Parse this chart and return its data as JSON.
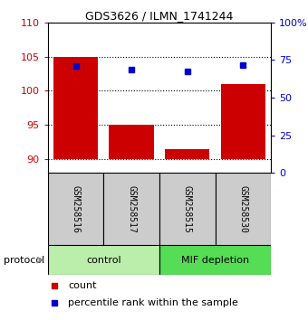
{
  "title": "GDS3626 / ILMN_1741244",
  "samples": [
    "GSM258516",
    "GSM258517",
    "GSM258515",
    "GSM258530"
  ],
  "bar_values": [
    105.0,
    95.0,
    91.5,
    101.0
  ],
  "bar_bottom": 90,
  "blue_values": [
    103.6,
    103.1,
    102.8,
    103.7
  ],
  "bar_color": "#cc0000",
  "blue_color": "#0000cc",
  "ylim_left": [
    88,
    110
  ],
  "ylim_right": [
    0,
    100
  ],
  "yticks_left": [
    90,
    95,
    100,
    105,
    110
  ],
  "yticks_right": [
    0,
    25,
    50,
    75,
    100
  ],
  "yticklabels_right": [
    "0",
    "25",
    "50",
    "75",
    "100%"
  ],
  "group_control_color": "#bbeeaa",
  "group_mif_color": "#55dd55",
  "groups": [
    {
      "label": "control",
      "indices": [
        0,
        1
      ]
    },
    {
      "label": "MIF depletion",
      "indices": [
        2,
        3
      ]
    }
  ],
  "protocol_label": "protocol",
  "legend_count_label": "count",
  "legend_percentile_label": "percentile rank within the sample",
  "bar_width": 0.8,
  "x_positions": [
    0,
    1,
    2,
    3
  ],
  "sample_box_color": "#cccccc",
  "figsize": [
    3.4,
    3.54
  ],
  "dpi": 100
}
